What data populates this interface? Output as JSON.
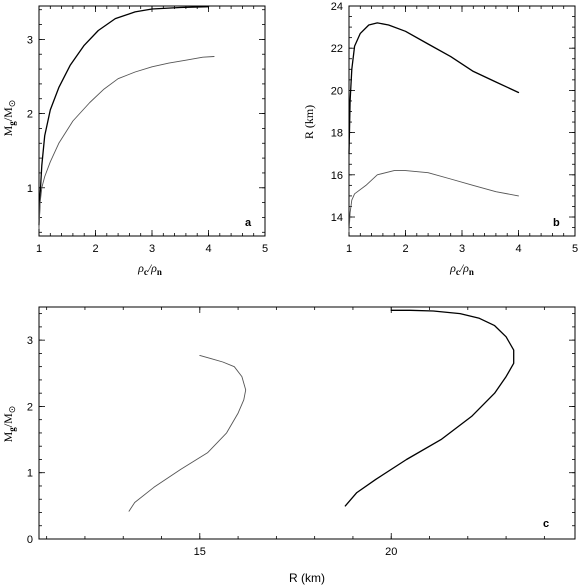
{
  "chart_data": [
    {
      "panel": "a",
      "type": "line",
      "xlabel": "ρc/ρn",
      "ylabel": "Mg/M⊙",
      "xlim": [
        1,
        5
      ],
      "ylim": [
        0.35,
        3.45
      ],
      "xticks": [
        1,
        2,
        3,
        4,
        5
      ],
      "yticks": [
        1,
        2,
        3
      ],
      "series": [
        {
          "color": "#000000",
          "x": [
            1.0,
            1.02,
            1.05,
            1.1,
            1.2,
            1.35,
            1.55,
            1.8,
            2.05,
            2.35,
            2.7,
            3.0,
            3.5,
            4.0
          ],
          "y": [
            0.5,
            0.9,
            1.3,
            1.7,
            2.05,
            2.35,
            2.65,
            2.92,
            3.12,
            3.28,
            3.37,
            3.41,
            3.43,
            3.44
          ]
        },
        {
          "color": "#555555",
          "x": [
            1.0,
            1.02,
            1.05,
            1.1,
            1.2,
            1.35,
            1.6,
            1.9,
            2.15,
            2.4,
            2.7,
            3.0,
            3.3,
            3.6,
            3.9,
            4.1
          ],
          "y": [
            0.45,
            0.8,
            1.0,
            1.15,
            1.35,
            1.6,
            1.9,
            2.15,
            2.33,
            2.47,
            2.56,
            2.63,
            2.68,
            2.72,
            2.76,
            2.77
          ]
        }
      ]
    },
    {
      "panel": "b",
      "type": "line",
      "xlabel": "ρc/ρn",
      "ylabel": "R (km)",
      "xlim": [
        1,
        5
      ],
      "ylim": [
        13.1,
        24
      ],
      "xticks": [
        1,
        2,
        3,
        4,
        5
      ],
      "yticks": [
        14,
        16,
        18,
        20,
        22,
        24
      ],
      "series": [
        {
          "color": "#000000",
          "x": [
            1.0,
            1.02,
            1.05,
            1.1,
            1.2,
            1.35,
            1.5,
            1.7,
            2.0,
            2.4,
            2.8,
            3.2,
            3.6,
            4.0
          ],
          "y": [
            17.0,
            19.5,
            21.0,
            22.1,
            22.7,
            23.1,
            23.2,
            23.1,
            22.8,
            22.2,
            21.6,
            20.9,
            20.4,
            19.9
          ]
        },
        {
          "color": "#555555",
          "x": [
            1.0,
            1.02,
            1.05,
            1.1,
            1.3,
            1.5,
            1.8,
            2.0,
            2.4,
            2.8,
            3.2,
            3.6,
            4.0
          ],
          "y": [
            13.3,
            14.2,
            14.8,
            15.1,
            15.5,
            16.0,
            16.2,
            16.2,
            16.1,
            15.8,
            15.5,
            15.2,
            15.0
          ]
        }
      ]
    },
    {
      "panel": "c",
      "type": "line",
      "xlabel": "R (km)",
      "ylabel": "Mg/M⊙",
      "xlim": [
        10.8,
        24.8
      ],
      "ylim": [
        0,
        3.5
      ],
      "xticks": [
        15,
        20
      ],
      "yticks": [
        0,
        1,
        2,
        3
      ],
      "series": [
        {
          "color": "#000000",
          "x": [
            18.8,
            19.1,
            19.6,
            20.4,
            21.3,
            22.1,
            22.7,
            23.0,
            23.2,
            23.2,
            23.0,
            22.7,
            22.3,
            21.8,
            21.1,
            20.5,
            20.0
          ],
          "y": [
            0.5,
            0.7,
            0.9,
            1.2,
            1.5,
            1.85,
            2.2,
            2.45,
            2.65,
            2.85,
            3.05,
            3.22,
            3.33,
            3.4,
            3.44,
            3.45,
            3.45
          ]
        },
        {
          "color": "#555555",
          "x": [
            13.15,
            13.3,
            13.8,
            14.5,
            15.2,
            15.7,
            16.0,
            16.15,
            16.2,
            16.1,
            15.9,
            15.6,
            15.3,
            15.0
          ],
          "y": [
            0.42,
            0.55,
            0.78,
            1.05,
            1.3,
            1.6,
            1.9,
            2.1,
            2.25,
            2.45,
            2.6,
            2.67,
            2.72,
            2.77
          ]
        }
      ]
    }
  ]
}
